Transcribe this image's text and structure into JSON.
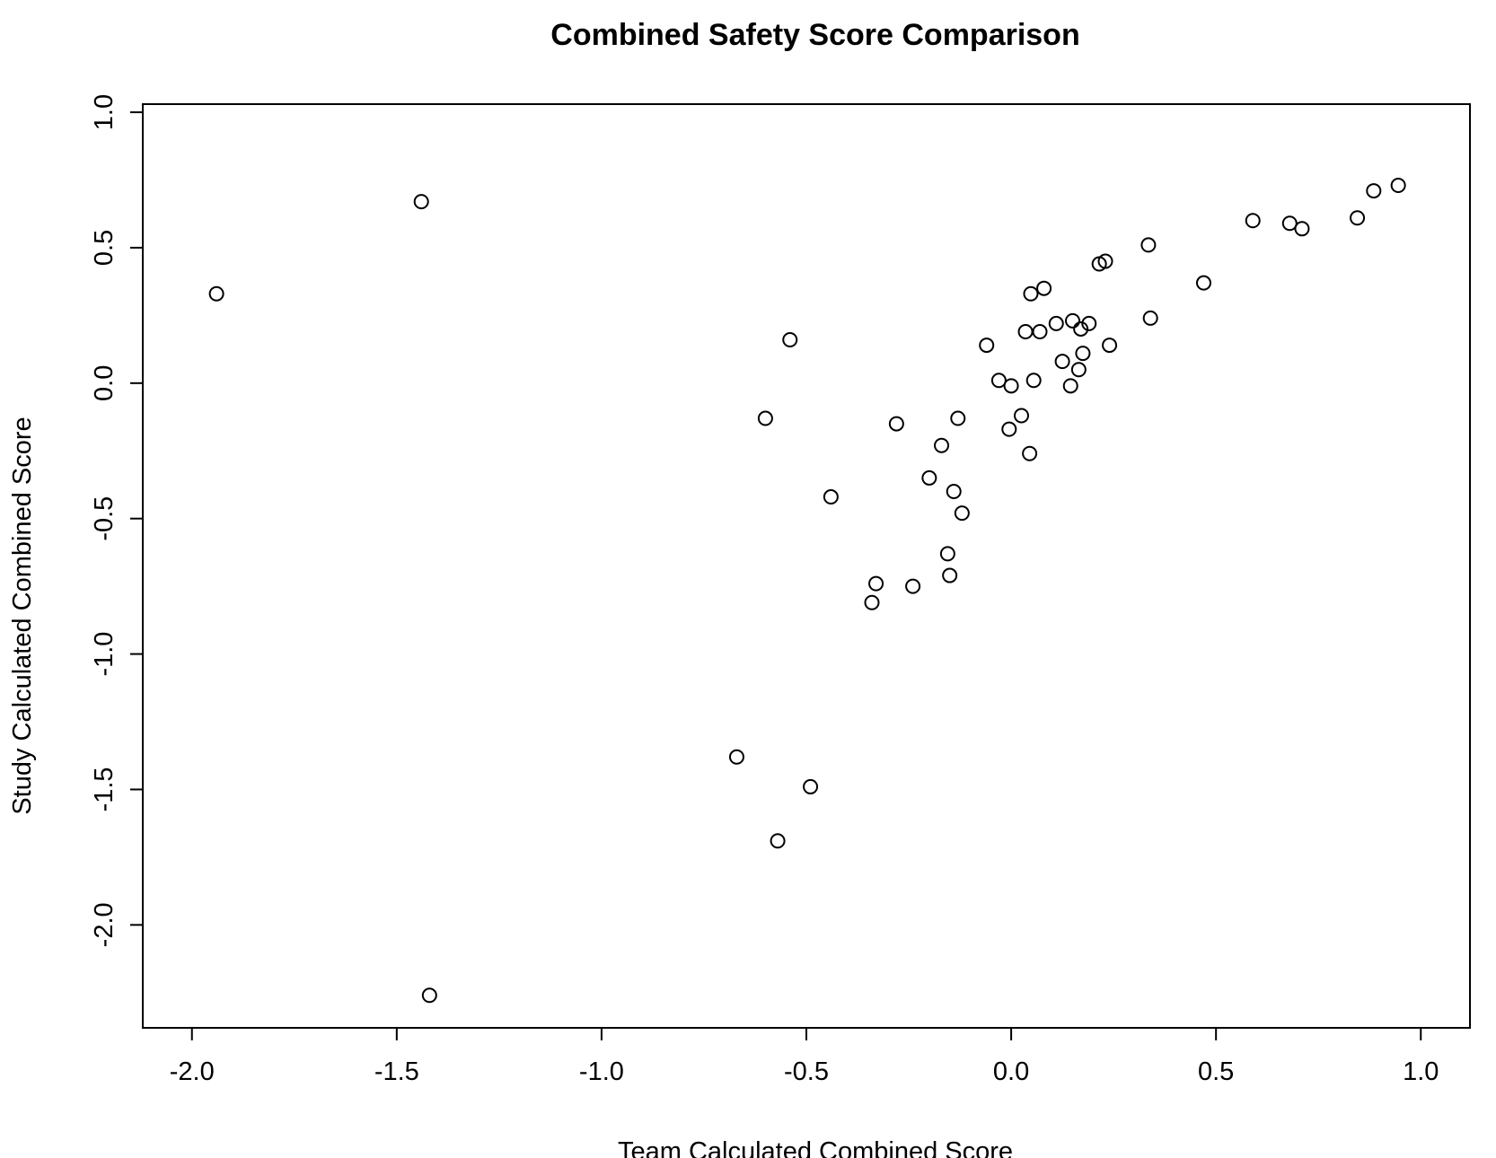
{
  "chart_data": {
    "type": "scatter",
    "title": "Combined Safety Score Comparison",
    "xlabel": "Team Calculated Combined Score",
    "ylabel": "Study Calculated Combined Score",
    "xlim": [
      -2.12,
      1.12
    ],
    "ylim": [
      -2.38,
      1.03
    ],
    "xticks": [
      -2.0,
      -1.5,
      -1.0,
      -0.5,
      0.0,
      0.5,
      1.0
    ],
    "xtick_labels": [
      "-2.0",
      "-1.5",
      "-1.0",
      "-0.5",
      "0.0",
      "0.5",
      "1.0"
    ],
    "yticks": [
      1.0,
      0.5,
      0.0,
      -0.5,
      -1.0,
      -1.5,
      -2.0
    ],
    "ytick_labels": [
      "1.0",
      "0.5",
      "0.0",
      "-0.5",
      "-1.0",
      "-1.5",
      "-2.0"
    ],
    "grid": false,
    "legend": "none",
    "marker": "open-circle",
    "points": [
      {
        "x": -1.94,
        "y": 0.33
      },
      {
        "x": -1.44,
        "y": 0.67
      },
      {
        "x": -1.42,
        "y": -2.26
      },
      {
        "x": -0.67,
        "y": -1.38
      },
      {
        "x": -0.6,
        "y": -0.13
      },
      {
        "x": -0.57,
        "y": -1.69
      },
      {
        "x": -0.54,
        "y": 0.16
      },
      {
        "x": -0.49,
        "y": -1.49
      },
      {
        "x": -0.44,
        "y": -0.42
      },
      {
        "x": -0.34,
        "y": -0.81
      },
      {
        "x": -0.33,
        "y": -0.74
      },
      {
        "x": -0.28,
        "y": -0.15
      },
      {
        "x": -0.24,
        "y": -0.75
      },
      {
        "x": -0.2,
        "y": -0.35
      },
      {
        "x": -0.17,
        "y": -0.23
      },
      {
        "x": -0.155,
        "y": -0.63
      },
      {
        "x": -0.15,
        "y": -0.71
      },
      {
        "x": -0.14,
        "y": -0.4
      },
      {
        "x": -0.13,
        "y": -0.13
      },
      {
        "x": -0.12,
        "y": -0.48
      },
      {
        "x": -0.06,
        "y": 0.14
      },
      {
        "x": -0.03,
        "y": 0.01
      },
      {
        "x": -0.005,
        "y": -0.17
      },
      {
        "x": 0.0,
        "y": -0.01
      },
      {
        "x": 0.025,
        "y": -0.12
      },
      {
        "x": 0.035,
        "y": 0.19
      },
      {
        "x": 0.045,
        "y": -0.26
      },
      {
        "x": 0.048,
        "y": 0.33
      },
      {
        "x": 0.055,
        "y": 0.01
      },
      {
        "x": 0.07,
        "y": 0.19
      },
      {
        "x": 0.08,
        "y": 0.35
      },
      {
        "x": 0.11,
        "y": 0.22
      },
      {
        "x": 0.125,
        "y": 0.08
      },
      {
        "x": 0.145,
        "y": -0.01
      },
      {
        "x": 0.15,
        "y": 0.23
      },
      {
        "x": 0.165,
        "y": 0.05
      },
      {
        "x": 0.17,
        "y": 0.2
      },
      {
        "x": 0.175,
        "y": 0.11
      },
      {
        "x": 0.19,
        "y": 0.22
      },
      {
        "x": 0.215,
        "y": 0.44
      },
      {
        "x": 0.23,
        "y": 0.45
      },
      {
        "x": 0.24,
        "y": 0.14
      },
      {
        "x": 0.335,
        "y": 0.51
      },
      {
        "x": 0.34,
        "y": 0.24
      },
      {
        "x": 0.47,
        "y": 0.37
      },
      {
        "x": 0.59,
        "y": 0.6
      },
      {
        "x": 0.68,
        "y": 0.59
      },
      {
        "x": 0.71,
        "y": 0.57
      },
      {
        "x": 0.845,
        "y": 0.61
      },
      {
        "x": 0.885,
        "y": 0.71
      },
      {
        "x": 0.945,
        "y": 0.73
      }
    ]
  }
}
